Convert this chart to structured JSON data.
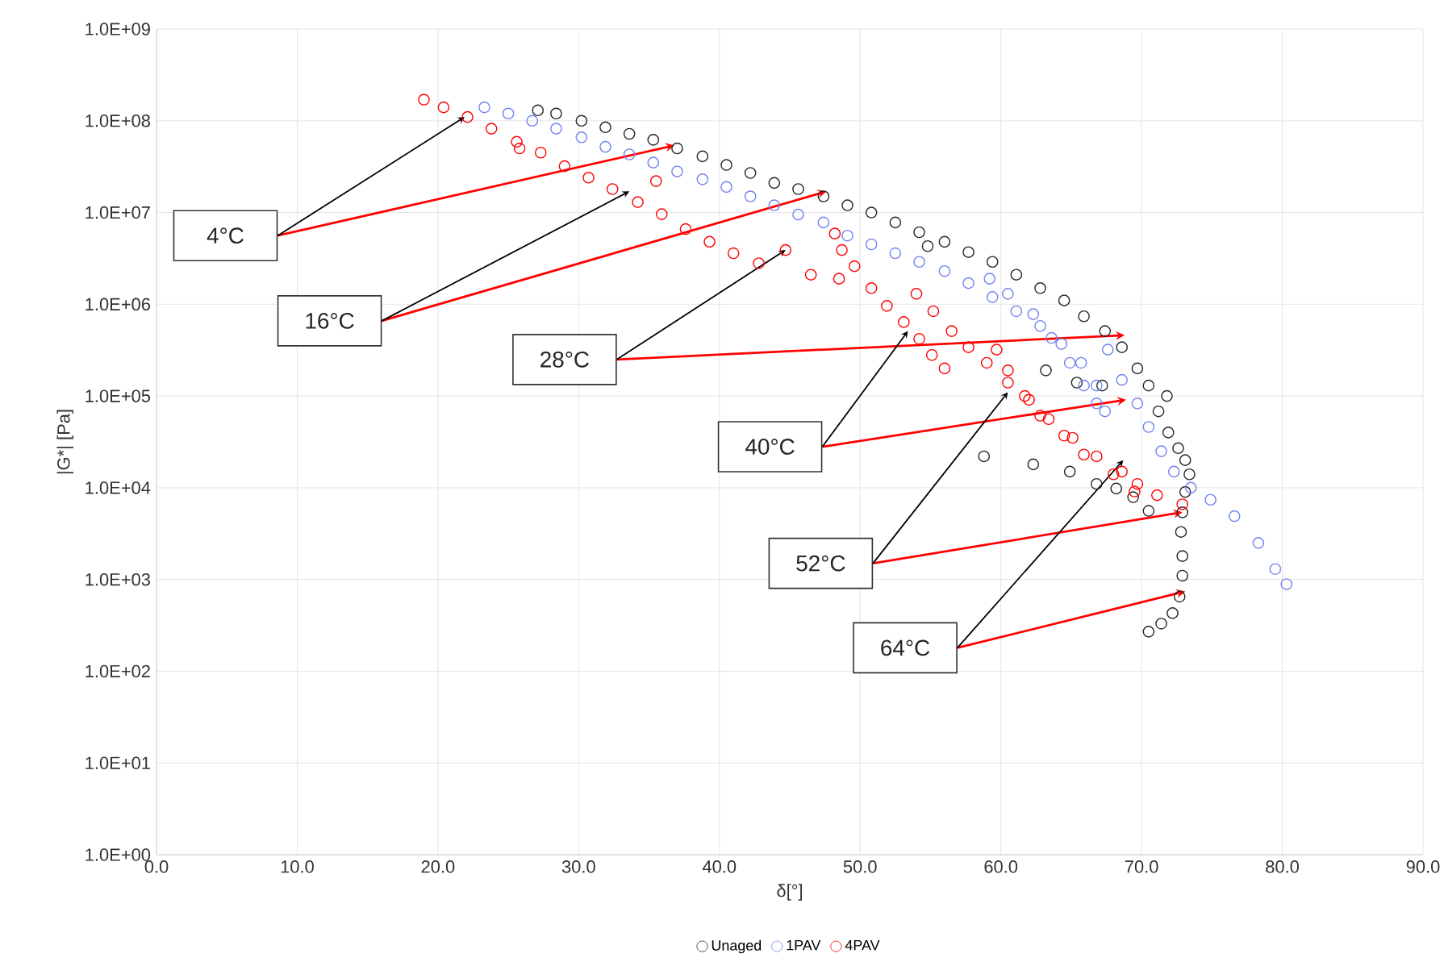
{
  "chart_data": {
    "type": "scatter",
    "xlabel": "δ[°]",
    "ylabel": "|G*| [Pa]",
    "log": "y",
    "grid": true,
    "legend": "bottom",
    "marker": "circle",
    "xlim": [
      0,
      90
    ],
    "ylim": [
      1,
      1000000000
    ],
    "xticks": [
      {
        "value": 0,
        "label": "0.0"
      },
      {
        "value": 10,
        "label": "10.0"
      },
      {
        "value": 20,
        "label": "20.0"
      },
      {
        "value": 30,
        "label": "30.0"
      },
      {
        "value": 40,
        "label": "40.0"
      },
      {
        "value": 50,
        "label": "50.0"
      },
      {
        "value": 60,
        "label": "60.0"
      },
      {
        "value": 70,
        "label": "70.0"
      },
      {
        "value": 80,
        "label": "80.0"
      },
      {
        "value": 90,
        "label": "90.0"
      }
    ],
    "yticks": [
      {
        "value": 1,
        "label": "1.0E+00"
      },
      {
        "value": 10,
        "label": "1.0E+01"
      },
      {
        "value": 100,
        "label": "1.0E+02"
      },
      {
        "value": 1000,
        "label": "1.0E+03"
      },
      {
        "value": 10000,
        "label": "1.0E+04"
      },
      {
        "value": 100000,
        "label": "1.0E+05"
      },
      {
        "value": 1000000,
        "label": "1.0E+06"
      },
      {
        "value": 10000000,
        "label": "1.0E+07"
      },
      {
        "value": 100000000,
        "label": "1.0E+08"
      },
      {
        "value": 1000000000,
        "label": "1.0E+09"
      }
    ],
    "series": [
      {
        "name": "Unaged",
        "color": "#262626",
        "x": [
          27.1,
          28.4,
          30.2,
          31.9,
          33.6,
          35.3,
          37.0,
          38.8,
          40.5,
          42.2,
          43.9,
          45.6,
          47.4,
          49.1,
          50.8,
          52.5,
          54.2,
          56.0,
          57.7,
          59.4,
          61.1,
          62.8,
          64.5,
          65.9,
          67.4,
          68.6,
          69.7,
          70.5,
          71.2,
          71.9,
          72.6,
          73.1,
          73.4,
          73.1,
          72.9,
          72.8,
          72.9,
          72.9,
          72.7,
          72.2,
          71.4,
          70.5,
          54.8,
          63.2,
          65.4,
          67.2,
          71.8,
          58.8,
          62.3,
          64.9,
          66.8,
          68.2,
          69.4,
          70.5
        ],
        "values": [
          130000000,
          120000000,
          100000000,
          85000000,
          72000000,
          62000000,
          50000000,
          41000000,
          33000000,
          27000000,
          21000000,
          18000000,
          15000000,
          12000000,
          10000000,
          7800000,
          6100000,
          4800000,
          3700000,
          2900000,
          2100000,
          1500000,
          1100000,
          740000,
          510000,
          340000,
          200000,
          130000,
          68000,
          40000,
          27000,
          20000,
          14000,
          9000,
          5400,
          3300,
          1800,
          1100,
          650,
          430,
          330,
          270,
          4300000,
          190000,
          140000,
          130000,
          100000,
          22000,
          18000,
          15000,
          11000,
          9800,
          7900,
          5600
        ]
      },
      {
        "name": "1PAV",
        "color": "#7083f0",
        "x": [
          23.3,
          25.0,
          26.7,
          28.4,
          30.2,
          31.9,
          33.6,
          35.3,
          37.0,
          38.8,
          40.5,
          42.2,
          43.9,
          45.6,
          47.4,
          49.1,
          50.8,
          52.5,
          54.2,
          56.0,
          57.7,
          59.4,
          61.1,
          62.8,
          64.3,
          65.7,
          66.8,
          67.4,
          59.2,
          60.5,
          62.3,
          63.6,
          64.9,
          65.9,
          66.8,
          67.6,
          68.6,
          69.7,
          70.5,
          71.4,
          72.3,
          73.5,
          74.9,
          76.6,
          78.3,
          79.5,
          80.3
        ],
        "values": [
          140000000,
          120000000,
          100000000,
          82000000,
          66000000,
          52000000,
          43000000,
          35000000,
          28000000,
          23000000,
          19000000,
          15000000,
          12000000,
          9500000,
          7800000,
          5600000,
          4500000,
          3600000,
          2900000,
          2300000,
          1700000,
          1200000,
          840000,
          580000,
          370000,
          230000,
          130000,
          68000,
          1900000,
          1300000,
          780000,
          430000,
          230000,
          130000,
          83000,
          320000,
          150000,
          83000,
          46000,
          25000,
          15000,
          10000,
          7400,
          4900,
          2500,
          1300,
          890
        ]
      },
      {
        "name": "4PAV",
        "color": "#ff0000",
        "x": [
          19.0,
          20.4,
          22.1,
          23.8,
          25.6,
          27.3,
          29.0,
          30.7,
          32.4,
          34.2,
          35.9,
          37.6,
          39.3,
          41.0,
          42.8,
          44.7,
          46.5,
          25.8,
          35.5,
          48.2,
          48.7,
          49.6,
          50.8,
          51.9,
          53.1,
          54.2,
          55.1,
          56.0,
          48.5,
          54.0,
          55.2,
          56.5,
          57.7,
          59.0,
          60.5,
          62.0,
          63.4,
          65.1,
          66.8,
          68.6,
          69.7,
          71.1,
          59.7,
          60.5,
          61.7,
          62.8,
          64.5,
          65.9,
          68.0,
          69.5,
          72.9
        ],
        "values": [
          170000000,
          140000000,
          110000000,
          82000000,
          59000000,
          45000000,
          32000000,
          24000000,
          18000000,
          13000000,
          9600000,
          6600000,
          4800000,
          3600000,
          2800000,
          3900000,
          2100000,
          50000000,
          22000000,
          5900000,
          3900000,
          2600000,
          1500000,
          960000,
          640000,
          420000,
          280000,
          200000,
          1900000,
          1300000,
          840000,
          510000,
          340000,
          230000,
          140000,
          91000,
          56000,
          35000,
          22000,
          15000,
          11000,
          8300,
          320000,
          190000,
          100000,
          61000,
          37000,
          23000,
          14000,
          9100,
          6600
        ]
      }
    ],
    "annotations": [
      "4°C",
      {
        "text": "16°C",
        "x": 33.6,
        "y": 17000000
      },
      {
        "text": "28°C",
        "x": 44.7,
        "y": 3900000
      },
      {
        "text": "40°C",
        "x": 53.4,
        "y": 510000
      },
      {
        "text": "52°C",
        "x": 60.5,
        "y": 110000
      },
      {
        "text": "64°C",
        "x": 68.7,
        "y": 20000
      }
    ]
  }
}
